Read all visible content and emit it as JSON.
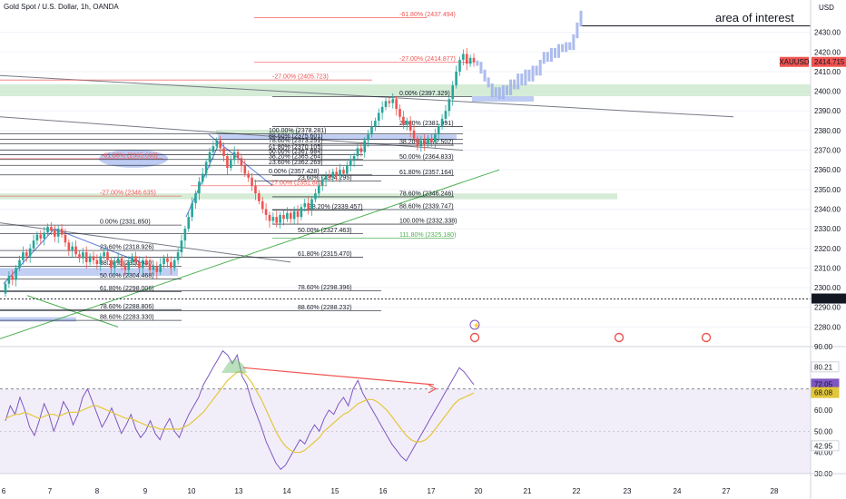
{
  "header": {
    "title": "Gold Spot / U.S. Dollar, 1h, OANDA",
    "currency": "USD"
  },
  "annotation": {
    "text": "area of interest"
  },
  "colors": {
    "up": "#26a69a",
    "down": "#ef5350",
    "rsi": "#7e57c2",
    "rsi_ma": "#e3c63a",
    "zone_green": "#c8e6c9",
    "zone_blue": "#aebff0",
    "neg": "#ef5350",
    "pos": "#4caf50",
    "line": "#131722"
  },
  "chart_data": [
    {
      "type": "candlestick",
      "title": "Gold Spot / U.S. Dollar, 1h, OANDA",
      "ylim": [
        2270,
        2440
      ],
      "y_ticks": [
        2280,
        2290,
        2300,
        2310,
        2320,
        2330,
        2340,
        2350,
        2360,
        2370,
        2380,
        2390,
        2400,
        2410,
        2420,
        2430
      ],
      "x_ticks": [
        6,
        7,
        8,
        9,
        10,
        13,
        14,
        15,
        16,
        17,
        20,
        21,
        22,
        23,
        24,
        27,
        28
      ],
      "price_labels": [
        {
          "text": "XAUUSD",
          "value": "2414.715",
          "price": 2414.715,
          "color": "#ef5350"
        },
        {
          "text": "",
          "value": "2294.232",
          "price": 2294.232,
          "color": "#131722"
        }
      ],
      "fib_levels": [
        {
          "label": "-61.80% (2437.494)",
          "price": 2437.494,
          "kind": "neg"
        },
        {
          "label": "-27.00% (2414.877)",
          "price": 2414.877,
          "kind": "neg"
        },
        {
          "label": "-27.00% (2405.723)",
          "price": 2405.723,
          "kind": "neg"
        },
        {
          "label": "0.00% (2397.329)",
          "price": 2397.329,
          "kind": "normal"
        },
        {
          "label": "23.60% (2381.991)",
          "price": 2381.991,
          "kind": "normal"
        },
        {
          "label": "100.00% (2378.281)",
          "price": 2378.281,
          "kind": "normal"
        },
        {
          "label": "88.60% (2375.601)",
          "price": 2375.601,
          "kind": "normal"
        },
        {
          "label": "78.60% (2373.251)",
          "price": 2373.251,
          "kind": "normal"
        },
        {
          "label": "38.20% (2372.502)",
          "price": 2372.502,
          "kind": "normal"
        },
        {
          "label": "61.80% (2370.105)",
          "price": 2370.105,
          "kind": "normal"
        },
        {
          "label": "50.00% (2367.684)",
          "price": 2367.684,
          "kind": "normal"
        },
        {
          "label": "-61.80% (2365.693)",
          "price": 2365.693,
          "kind": "neg"
        },
        {
          "label": "38.20% (2365.264)",
          "price": 2365.264,
          "kind": "normal"
        },
        {
          "label": "50.00% (2364.833)",
          "price": 2364.833,
          "kind": "normal"
        },
        {
          "label": "23.60% (2362.269)",
          "price": 2362.269,
          "kind": "normal"
        },
        {
          "label": "0.00% (2357.428)",
          "price": 2357.428,
          "kind": "normal"
        },
        {
          "label": "61.80% (2357.164)",
          "price": 2357.164,
          "kind": "normal"
        },
        {
          "label": "23.60% (2354.295)",
          "price": 2354.295,
          "kind": "normal"
        },
        {
          "label": "-27.00% (2351.88)",
          "price": 2351.88,
          "kind": "neg"
        },
        {
          "label": "-27.00% (2346.635)",
          "price": 2346.635,
          "kind": "neg"
        },
        {
          "label": "78.60% (2346.246)",
          "price": 2346.246,
          "kind": "normal"
        },
        {
          "label": "88.60% (2339.747)",
          "price": 2339.747,
          "kind": "normal"
        },
        {
          "label": "38.20% (2339.457)",
          "price": 2339.457,
          "kind": "normal"
        },
        {
          "label": "100.00% (2332.338)",
          "price": 2332.338,
          "kind": "normal"
        },
        {
          "label": "0.00% (2331.850)",
          "price": 2331.85,
          "kind": "normal"
        },
        {
          "label": "50.00% (2327.463)",
          "price": 2327.463,
          "kind": "normal"
        },
        {
          "label": "111.80% (2325.180)",
          "price": 2325.18,
          "kind": "pos"
        },
        {
          "label": "23.60% (2318.926)",
          "price": 2318.926,
          "kind": "normal"
        },
        {
          "label": "61.80% (2315.470)",
          "price": 2315.47,
          "kind": "normal"
        },
        {
          "label": "38.20% (2310.930)",
          "price": 2310.93,
          "kind": "normal"
        },
        {
          "label": "50.00% (2304.468)",
          "price": 2304.468,
          "kind": "normal"
        },
        {
          "label": "78.60% (2298.396)",
          "price": 2298.396,
          "kind": "normal"
        },
        {
          "label": "61.80% (2298.006)",
          "price": 2298.006,
          "kind": "normal"
        },
        {
          "label": "88.60% (2288.232)",
          "price": 2288.232,
          "kind": "normal"
        },
        {
          "label": "78.60% (2288.806)",
          "price": 2288.806,
          "kind": "normal"
        },
        {
          "label": "88.60% (2283.330)",
          "price": 2283.33,
          "kind": "normal"
        }
      ],
      "zones": [
        {
          "name": "green-zone-top",
          "from": 2397.5,
          "to": 2403.5,
          "color": "green"
        },
        {
          "name": "green-zone-mid",
          "from": 2345,
          "to": 2348,
          "color": "green"
        },
        {
          "name": "green-zone-upper-left",
          "from": 2378.2,
          "to": 2380.4,
          "color": "green"
        },
        {
          "name": "blue-zone-1",
          "from": 2375.2,
          "to": 2378,
          "color": "blue"
        },
        {
          "name": "blue-zone-2",
          "from": 2306,
          "to": 2310,
          "color": "blue"
        },
        {
          "name": "blue-zone-3",
          "from": 2282.7,
          "to": 2285,
          "color": "blue"
        }
      ],
      "candles": {
        "start_price": 2297,
        "closes": [
          2302,
          2306,
          2304,
          2310,
          2314,
          2318,
          2316,
          2320,
          2324,
          2327,
          2325,
          2328,
          2331,
          2329,
          2326,
          2330,
          2327,
          2323,
          2319,
          2321,
          2317,
          2315,
          2318,
          2313,
          2316,
          2314,
          2312,
          2316,
          2318,
          2314,
          2310,
          2313,
          2315,
          2311,
          2309,
          2313,
          2316,
          2313,
          2310,
          2314,
          2312,
          2309,
          2311,
          2308,
          2312,
          2315,
          2313,
          2310,
          2314,
          2318,
          2324,
          2330,
          2336,
          2343,
          2348,
          2354,
          2358,
          2364,
          2369,
          2372,
          2375,
          2371,
          2367,
          2361,
          2365,
          2369,
          2366,
          2362,
          2358,
          2356,
          2352,
          2348,
          2344,
          2340,
          2337,
          2334,
          2336,
          2333,
          2337,
          2335,
          2338,
          2335,
          2339,
          2336,
          2341,
          2343,
          2340,
          2345,
          2348,
          2352,
          2355,
          2357,
          2356,
          2359,
          2357,
          2360,
          2358,
          2362,
          2365,
          2367,
          2371,
          2369,
          2375,
          2378,
          2382,
          2385,
          2389,
          2392,
          2395,
          2394,
          2396,
          2391,
          2387,
          2383,
          2385,
          2380,
          2376,
          2372,
          2375,
          2373,
          2376,
          2374,
          2378,
          2382,
          2386,
          2390,
          2396,
          2403,
          2410,
          2416,
          2419,
          2414,
          2417,
          2414.7
        ]
      },
      "forecast": [
        2414,
        2410,
        2406,
        2403,
        2398,
        2401,
        2397,
        2402,
        2399,
        2405,
        2402,
        2408,
        2404,
        2410,
        2406,
        2412,
        2409,
        2415,
        2419,
        2416,
        2421,
        2418,
        2423,
        2421,
        2424,
        2422,
        2428,
        2434,
        2440
      ]
    },
    {
      "type": "line",
      "title": "RSI",
      "ylim": [
        30,
        90
      ],
      "y_ticks": [
        30.0,
        40.0,
        50.0,
        60.0,
        70.0,
        80.0,
        90.0
      ],
      "bands": [
        30,
        70
      ],
      "markers": [
        80.21,
        72.05,
        68.08,
        42.95
      ],
      "series": [
        {
          "name": "",
          "values": [
            55,
            62,
            58,
            66,
            60,
            52,
            48,
            55,
            63,
            58,
            50,
            56,
            64,
            60,
            53,
            58,
            66,
            70,
            64,
            58,
            52,
            56,
            61,
            55,
            49,
            53,
            58,
            51,
            47,
            50,
            55,
            49,
            46,
            52,
            56,
            50,
            47,
            53,
            58,
            62,
            66,
            72,
            76,
            80,
            84,
            88,
            86,
            82,
            86,
            76,
            72,
            64,
            58,
            52,
            45,
            40,
            35,
            32,
            34,
            38,
            42,
            46,
            44,
            49,
            53,
            50,
            56,
            60,
            58,
            63,
            66,
            62,
            70,
            74,
            68,
            64,
            60,
            56,
            52,
            48,
            44,
            41,
            38,
            36,
            40,
            44,
            48,
            52,
            56,
            60,
            64,
            68,
            72,
            76,
            80,
            78,
            75,
            72.05
          ]
        },
        {
          "name": "",
          "values": [
            56,
            57,
            58,
            58,
            59,
            58,
            57,
            56,
            57,
            58,
            58,
            57,
            58,
            59,
            59,
            59,
            60,
            61,
            62,
            62,
            61,
            60,
            59,
            58,
            57,
            56,
            56,
            55,
            54,
            53,
            52,
            52,
            51,
            51,
            51,
            51,
            51,
            52,
            53,
            55,
            57,
            59,
            62,
            65,
            68,
            71,
            74,
            76,
            78,
            78,
            76,
            73,
            69,
            65,
            60,
            55,
            50,
            46,
            43,
            41,
            40,
            40,
            41,
            43,
            45,
            47,
            50,
            52,
            54,
            56,
            58,
            59,
            61,
            63,
            64,
            65,
            65,
            64,
            62,
            60,
            57,
            54,
            51,
            48,
            46,
            45,
            45,
            46,
            48,
            51,
            54,
            57,
            60,
            63,
            65,
            66,
            67,
            68.08
          ]
        }
      ]
    }
  ]
}
